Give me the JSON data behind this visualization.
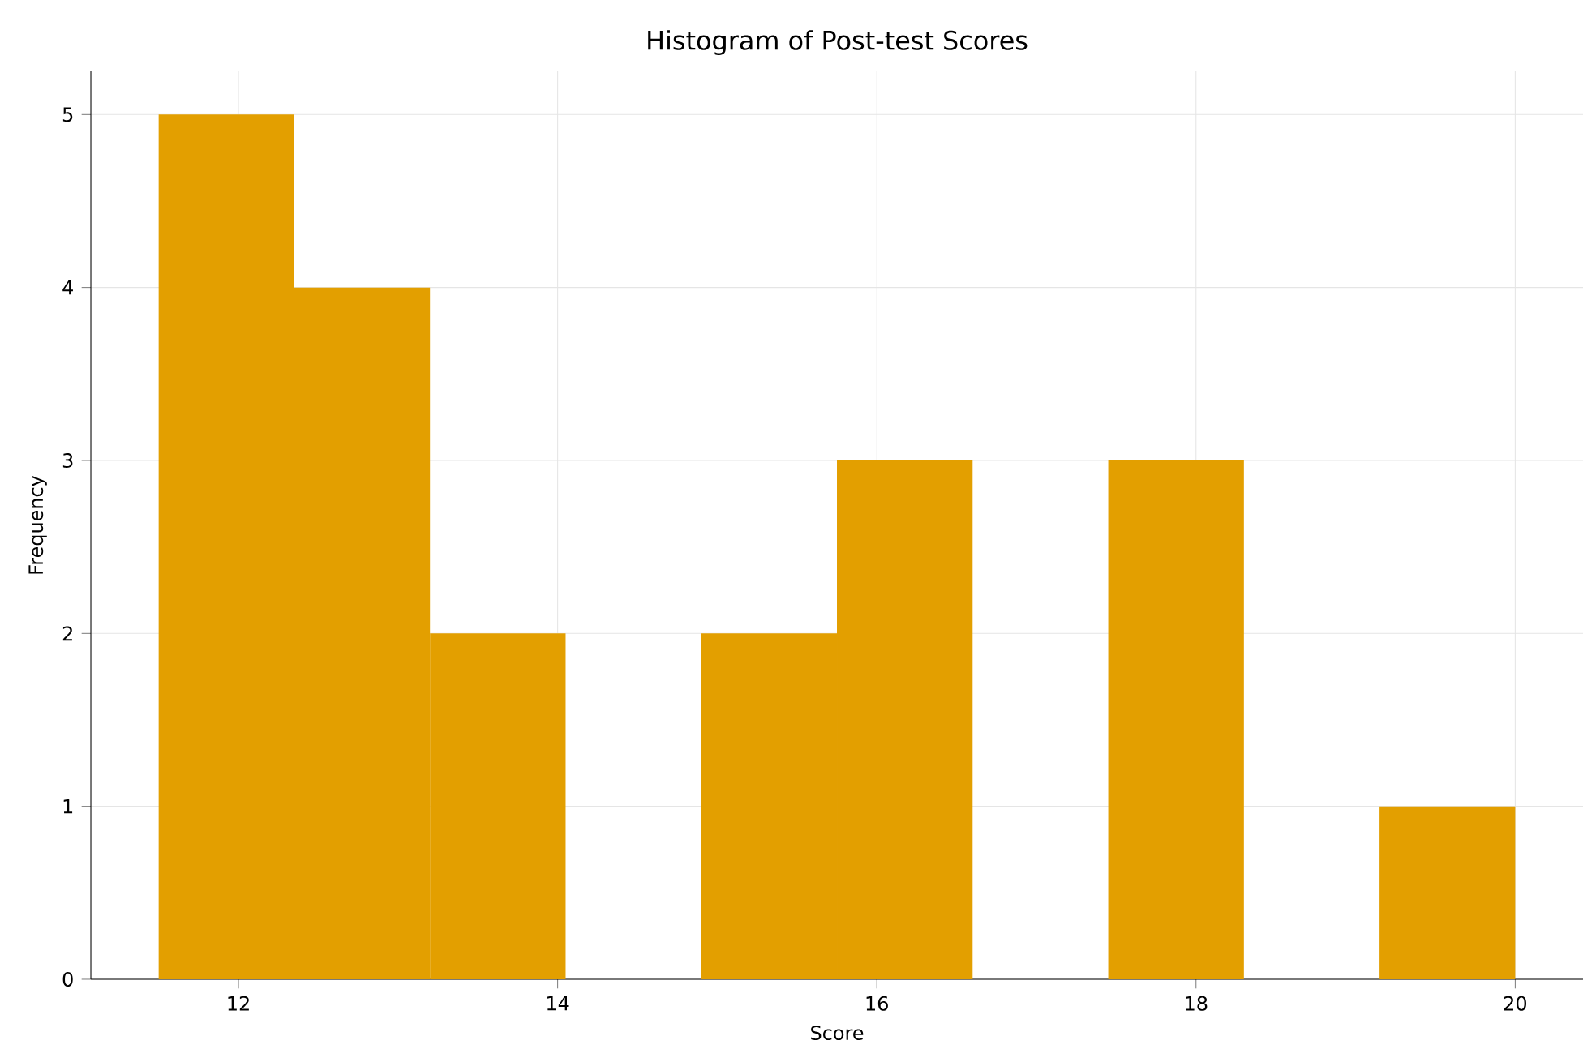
{
  "chart_data": {
    "type": "histogram",
    "title": "Histogram of Post-test Scores",
    "xlabel": "Score",
    "ylabel": "Frequency",
    "bins": [
      11.5,
      12.35,
      13.2,
      14.05,
      14.9,
      15.75,
      16.6,
      17.45,
      18.3,
      19.15,
      20.0
    ],
    "values": [
      5,
      4,
      2,
      0,
      2,
      3,
      0,
      3,
      0,
      1
    ],
    "color": "#e39f00",
    "xlim": [
      11.075,
      20.425
    ],
    "ylim": [
      0,
      5.25
    ],
    "xticks": [
      12,
      14,
      16,
      18,
      20
    ],
    "yticks": [
      0,
      1,
      2,
      3,
      4,
      5
    ],
    "grid": true
  }
}
